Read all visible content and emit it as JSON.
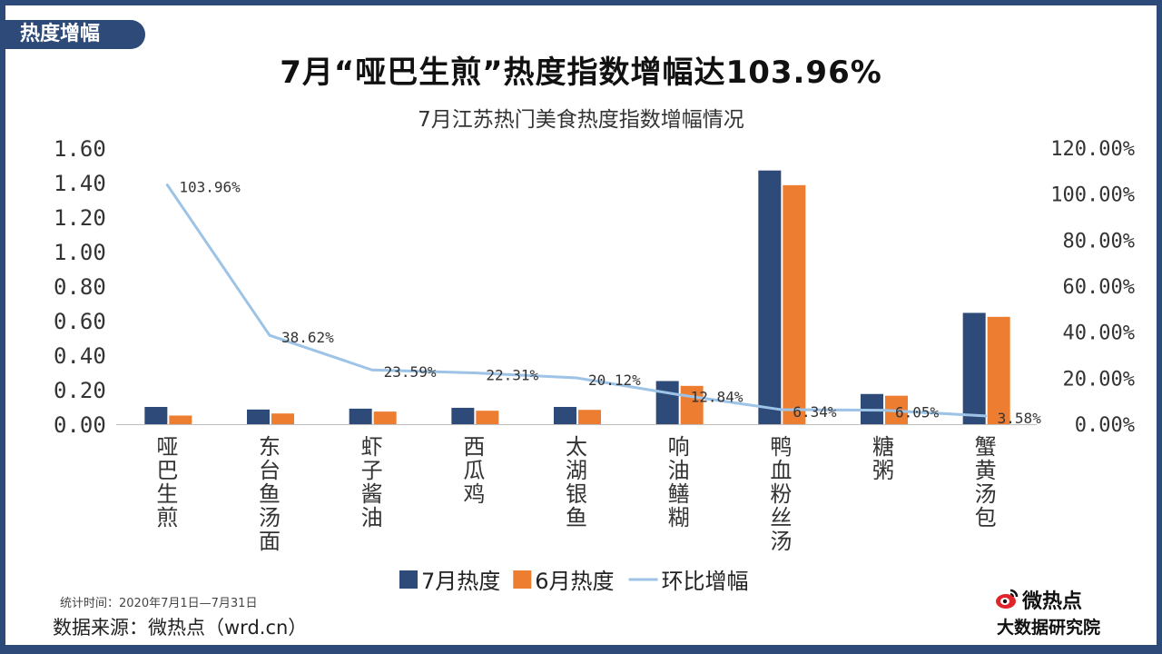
{
  "header": {
    "tag_label": "热度增幅",
    "main_title": "7月“哑巴生煎”热度指数增幅达103.96%"
  },
  "chart_data": {
    "type": "bar",
    "title": "7月江苏热门美食热度指数增幅情况",
    "categories": [
      "哑巴生煎",
      "东台鱼汤面",
      "虾子酱油",
      "西瓜鸡",
      "太湖银鱼",
      "响油鳝糊",
      "鸭血粉丝汤",
      "糖粥",
      "蟹黄汤包"
    ],
    "series": [
      {
        "name": "7月热度",
        "type": "bar",
        "axis": "left",
        "color": "#2e4a78",
        "values": [
          0.1,
          0.085,
          0.09,
          0.095,
          0.1,
          0.25,
          1.47,
          0.175,
          0.645
        ]
      },
      {
        "name": "6月热度",
        "type": "bar",
        "axis": "left",
        "color": "#ed7d31",
        "values": [
          0.05,
          0.062,
          0.073,
          0.078,
          0.083,
          0.222,
          1.385,
          0.165,
          0.622
        ]
      },
      {
        "name": "环比增幅",
        "type": "line",
        "axis": "right",
        "color": "#9dc3e6",
        "values": [
          103.96,
          38.62,
          23.59,
          22.31,
          20.12,
          12.84,
          6.34,
          6.05,
          3.58
        ],
        "labels": [
          "103.96%",
          "38.62%",
          "23.59%",
          "22.31%",
          "20.12%",
          "12.84%",
          "6.34%",
          "6.05%",
          "3.58%"
        ]
      }
    ],
    "y_left": {
      "min": 0,
      "max": 1.6,
      "ticks": [
        "0.00",
        "0.20",
        "0.40",
        "0.60",
        "0.80",
        "1.00",
        "1.20",
        "1.40",
        "1.60"
      ]
    },
    "y_right": {
      "min": 0,
      "max": 120,
      "ticks": [
        "0.00%",
        "20.00%",
        "40.00%",
        "60.00%",
        "80.00%",
        "100.00%",
        "120.00%"
      ]
    },
    "legend_position": "bottom",
    "grid": false
  },
  "footer": {
    "stat_period": "统计时间：2020年7月1日—7月31日",
    "data_source": "数据来源：微热点（wrd.cn）"
  },
  "brand": {
    "name": "微热点",
    "institute": "大数据研究院",
    "logo_icon": "weibo-eye-icon"
  }
}
